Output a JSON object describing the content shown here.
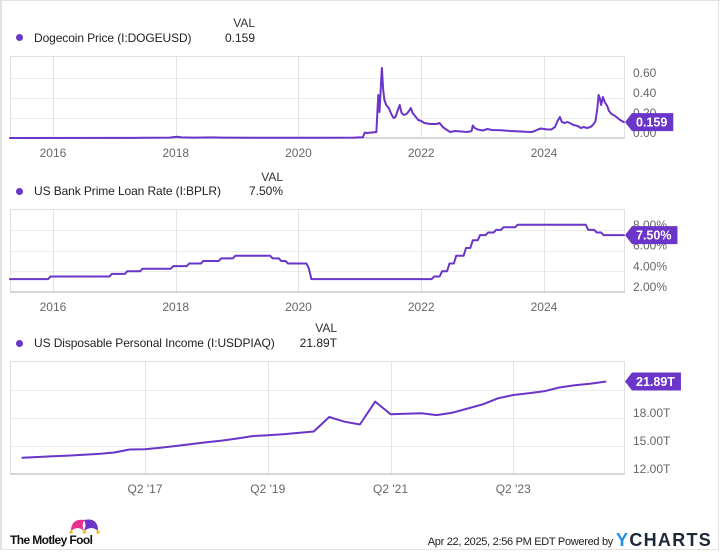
{
  "panels": [
    {
      "legend": {
        "column_header": "VAL",
        "series_name": "Dogecoin Price (I:DOGEUSD)",
        "value": "0.159"
      }
    },
    {
      "legend": {
        "column_header": "VAL",
        "series_name": "US Bank Prime Loan Rate (I:BPLR)",
        "value": "7.50%"
      }
    },
    {
      "legend": {
        "column_header": "VAL",
        "series_name": "US Disposable Personal Income (I:USDPIAQ)",
        "value": "21.89T"
      }
    }
  ],
  "footer": {
    "brand": "The Motley Fool",
    "timestamp_text": "Apr 22, 2025, 2:56 PM EDT Powered by",
    "provider_logo": {
      "first": "Y",
      "rest": "CHARTS"
    }
  },
  "colors": {
    "series": "#6a35c8",
    "flag": "#6a35c8",
    "ycharts_blue": "#1e8fe3",
    "ycharts_navy": "#1c2738",
    "fool_pink": "#e6318e",
    "fool_purple": "#6a35c8",
    "fool_yellow": "#f2c12e"
  },
  "chart_data": [
    {
      "type": "line",
      "title": "Dogecoin Price (I:DOGEUSD)",
      "xlabel": "",
      "ylabel": "",
      "xlim": [
        2015.3,
        2025.32
      ],
      "ylim": [
        0,
        0.82
      ],
      "grid": true,
      "legend_position": "top-left",
      "x_ticks": [
        2016,
        2018,
        2020,
        2022,
        2024
      ],
      "x_tick_labels": [
        "2016",
        "2018",
        "2020",
        "2022",
        "2024"
      ],
      "y_ticks": [
        0,
        0.2,
        0.4,
        0.6
      ],
      "y_tick_labels": [
        "0.00",
        "0.20",
        "0.40",
        "0.60"
      ],
      "last_value": 0.159,
      "last_value_label": "0.159",
      "series": [
        {
          "name": "Dogecoin Price (I:DOGEUSD)",
          "step": false,
          "x": [
            2015.3,
            2017.3,
            2017.45,
            2017.9,
            2018.02,
            2018.1,
            2018.3,
            2018.6,
            2018.75,
            2019.3,
            2019.5,
            2020.3,
            2020.9,
            2021.05,
            2021.08,
            2021.12,
            2021.2,
            2021.27,
            2021.29,
            2021.3,
            2021.32,
            2021.35,
            2021.36,
            2021.38,
            2021.4,
            2021.43,
            2021.47,
            2021.52,
            2021.55,
            2021.58,
            2021.62,
            2021.65,
            2021.68,
            2021.72,
            2021.76,
            2021.8,
            2021.83,
            2021.86,
            2021.9,
            2021.95,
            2022.0,
            2022.05,
            2022.15,
            2022.25,
            2022.3,
            2022.35,
            2022.42,
            2022.47,
            2022.55,
            2022.65,
            2022.75,
            2022.82,
            2022.84,
            2022.87,
            2022.92,
            2023.0,
            2023.08,
            2023.15,
            2023.3,
            2023.45,
            2023.55,
            2023.7,
            2023.8,
            2023.85,
            2023.9,
            2023.95,
            2024.0,
            2024.05,
            2024.12,
            2024.18,
            2024.22,
            2024.26,
            2024.29,
            2024.34,
            2024.38,
            2024.42,
            2024.48,
            2024.55,
            2024.6,
            2024.65,
            2024.7,
            2024.76,
            2024.81,
            2024.84,
            2024.87,
            2024.89,
            2024.91,
            2024.93,
            2024.96,
            2024.99,
            2025.03,
            2025.06,
            2025.1,
            2025.16,
            2025.2,
            2025.24,
            2025.27,
            2025.3
          ],
          "values": [
            0.0,
            0.001,
            0.003,
            0.004,
            0.012,
            0.006,
            0.004,
            0.006,
            0.004,
            0.003,
            0.003,
            0.002,
            0.004,
            0.008,
            0.055,
            0.05,
            0.055,
            0.06,
            0.3,
            0.43,
            0.26,
            0.6,
            0.7,
            0.48,
            0.38,
            0.33,
            0.3,
            0.23,
            0.2,
            0.21,
            0.28,
            0.33,
            0.25,
            0.23,
            0.24,
            0.27,
            0.3,
            0.25,
            0.22,
            0.18,
            0.17,
            0.15,
            0.14,
            0.14,
            0.15,
            0.11,
            0.08,
            0.06,
            0.07,
            0.065,
            0.06,
            0.07,
            0.125,
            0.1,
            0.085,
            0.075,
            0.09,
            0.08,
            0.078,
            0.07,
            0.068,
            0.062,
            0.06,
            0.07,
            0.085,
            0.095,
            0.09,
            0.085,
            0.085,
            0.11,
            0.17,
            0.21,
            0.16,
            0.15,
            0.16,
            0.15,
            0.13,
            0.12,
            0.1,
            0.11,
            0.1,
            0.11,
            0.14,
            0.17,
            0.3,
            0.43,
            0.4,
            0.33,
            0.41,
            0.36,
            0.32,
            0.27,
            0.24,
            0.22,
            0.2,
            0.18,
            0.17,
            0.159
          ]
        }
      ]
    },
    {
      "type": "line",
      "title": "US Bank Prime Loan Rate (I:BPLR)",
      "xlabel": "",
      "ylabel": "",
      "xlim": [
        2015.3,
        2025.32
      ],
      "ylim": [
        2,
        10.02
      ],
      "grid": true,
      "legend_position": "top-left",
      "x_ticks": [
        2016,
        2018,
        2020,
        2022,
        2024
      ],
      "x_tick_labels": [
        "2016",
        "2018",
        "2020",
        "2022",
        "2024"
      ],
      "y_ticks": [
        2,
        4,
        6,
        8
      ],
      "y_tick_labels": [
        "2.00%",
        "4.00%",
        "6.00%",
        "8.00%"
      ],
      "last_value": 7.5,
      "last_value_label": "7.50%",
      "series": [
        {
          "name": "US Bank Prime Loan Rate (I:BPLR)",
          "step": true,
          "x": [
            2015.3,
            2015.96,
            2016.96,
            2017.21,
            2017.46,
            2017.96,
            2018.22,
            2018.45,
            2018.74,
            2018.97,
            2019.58,
            2019.72,
            2019.83,
            2020.17,
            2020.21,
            2022.21,
            2022.34,
            2022.46,
            2022.57,
            2022.73,
            2022.84,
            2022.96,
            2023.09,
            2023.22,
            2023.34,
            2023.57,
            2024.72,
            2024.86,
            2024.97,
            2025.3
          ],
          "values": [
            3.25,
            3.5,
            3.75,
            4.0,
            4.25,
            4.5,
            4.75,
            5.0,
            5.25,
            5.5,
            5.25,
            5.0,
            4.75,
            4.25,
            3.25,
            3.5,
            4.0,
            4.75,
            5.5,
            6.25,
            7.0,
            7.5,
            7.75,
            8.0,
            8.25,
            8.5,
            8.0,
            7.75,
            7.5,
            7.5
          ]
        }
      ]
    },
    {
      "type": "line",
      "title": "US Disposable Personal Income (I:USDPIAQ)",
      "xlabel": "",
      "ylabel": "",
      "xlim": [
        2015.05,
        2025.07
      ],
      "ylim": [
        12,
        24.09
      ],
      "grid": true,
      "legend_position": "top-left",
      "x_ticks": [
        2017.25,
        2019.25,
        2021.25,
        2023.25
      ],
      "x_tick_labels": [
        "Q2 '17",
        "Q2 '19",
        "Q2 '21",
        "Q2 '23"
      ],
      "y_ticks": [
        12,
        15,
        18,
        21
      ],
      "y_tick_labels": [
        "12.00T",
        "15.00T",
        "18.00T",
        ""
      ],
      "last_value": 21.89,
      "last_value_label": "21.89T",
      "series": [
        {
          "name": "US Disposable Personal Income (I:USDPIAQ)",
          "step": false,
          "x": [
            2015.25,
            2015.5,
            2015.75,
            2016.0,
            2016.25,
            2016.5,
            2016.75,
            2017.0,
            2017.25,
            2017.5,
            2017.75,
            2018.0,
            2018.25,
            2018.5,
            2018.75,
            2019.0,
            2019.25,
            2019.5,
            2019.75,
            2020.0,
            2020.25,
            2020.5,
            2020.75,
            2021.0,
            2021.25,
            2021.5,
            2021.75,
            2022.0,
            2022.25,
            2022.5,
            2022.75,
            2023.0,
            2023.25,
            2023.5,
            2023.75,
            2024.0,
            2024.25,
            2024.5,
            2024.75
          ],
          "values": [
            13.74,
            13.82,
            13.9,
            13.97,
            14.05,
            14.15,
            14.3,
            14.62,
            14.64,
            14.8,
            15.0,
            15.2,
            15.4,
            15.57,
            15.8,
            16.05,
            16.15,
            16.25,
            16.4,
            16.55,
            18.1,
            17.6,
            17.3,
            19.75,
            18.4,
            18.45,
            18.5,
            18.3,
            18.55,
            19.0,
            19.45,
            20.1,
            20.45,
            20.65,
            20.85,
            21.25,
            21.5,
            21.65,
            21.89
          ]
        }
      ]
    }
  ]
}
